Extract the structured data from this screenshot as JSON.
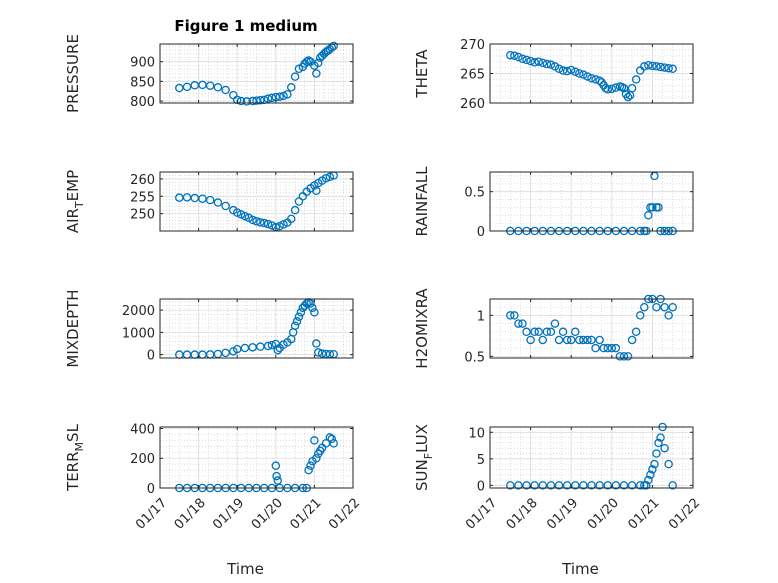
{
  "figure_title": "Figure 1 medium",
  "colors": {
    "marker": "#0072BD",
    "axis": "#262626",
    "grid": "#c9c9c9"
  },
  "chart_data": [
    {
      "type": "scatter",
      "id": "pressure",
      "title": "Figure 1 medium",
      "ylabel": "PRESSURE",
      "xlabel": "",
      "ylim": [
        795,
        945
      ],
      "yticks": [
        800,
        850,
        900
      ],
      "xlim": [
        17,
        22
      ],
      "xticks": [],
      "xtick_labels": [],
      "x": [
        17.5,
        17.7,
        17.9,
        18.1,
        18.3,
        18.5,
        18.7,
        18.9,
        19.0,
        19.1,
        19.25,
        19.4,
        19.5,
        19.6,
        19.7,
        19.8,
        19.9,
        20.0,
        20.1,
        20.2,
        20.3,
        20.4,
        20.5,
        20.6,
        20.7,
        20.75,
        20.8,
        20.85,
        20.9,
        21.0,
        21.05,
        21.1,
        21.15,
        21.2,
        21.25,
        21.3,
        21.35,
        21.4,
        21.45,
        21.5
      ],
      "y": [
        833,
        836,
        840,
        841,
        839,
        835,
        828,
        815,
        803,
        800,
        799,
        800,
        801,
        802,
        803,
        806,
        808,
        810,
        811,
        813,
        817,
        835,
        862,
        882,
        887,
        895,
        900,
        903,
        900,
        890,
        870,
        897,
        910,
        915,
        920,
        925,
        928,
        932,
        936,
        940
      ]
    },
    {
      "type": "scatter",
      "id": "theta",
      "ylabel": "THETA",
      "xlabel": "",
      "ylim": [
        260,
        270
      ],
      "yticks": [
        260,
        265,
        270
      ],
      "xlim": [
        17,
        22
      ],
      "xticks": [],
      "xtick_labels": [],
      "x": [
        17.5,
        17.6,
        17.7,
        17.8,
        17.9,
        18.0,
        18.1,
        18.2,
        18.3,
        18.4,
        18.5,
        18.6,
        18.7,
        18.8,
        18.9,
        19.0,
        19.1,
        19.2,
        19.3,
        19.4,
        19.5,
        19.6,
        19.7,
        19.75,
        19.8,
        19.85,
        19.9,
        20.0,
        20.1,
        20.2,
        20.25,
        20.3,
        20.35,
        20.4,
        20.45,
        20.5,
        20.6,
        20.7,
        20.8,
        20.9,
        21.0,
        21.1,
        21.2,
        21.3,
        21.4,
        21.5
      ],
      "y": [
        268.1,
        268.0,
        267.8,
        267.5,
        267.3,
        267.1,
        266.9,
        267.0,
        266.8,
        266.6,
        266.5,
        266.2,
        265.8,
        265.5,
        265.4,
        265.6,
        265.3,
        265.0,
        264.8,
        264.5,
        264.2,
        264.0,
        263.8,
        263.5,
        263.0,
        262.5,
        262.3,
        262.4,
        262.6,
        262.8,
        262.7,
        262.5,
        261.5,
        261.0,
        261.3,
        262.5,
        264.0,
        265.5,
        266.2,
        266.4,
        266.3,
        266.2,
        266.1,
        266.0,
        265.9,
        265.8
      ]
    },
    {
      "type": "scatter",
      "id": "air_temp",
      "ylabel": "AIR",
      "ylabel_sub": "T",
      "ylabel_rest": "EMP",
      "xlabel": "",
      "ylim": [
        245,
        262
      ],
      "yticks": [
        250,
        255,
        260
      ],
      "xlim": [
        17,
        22
      ],
      "xticks": [],
      "xtick_labels": [],
      "x": [
        17.5,
        17.7,
        17.9,
        18.1,
        18.3,
        18.5,
        18.7,
        18.9,
        19.0,
        19.1,
        19.2,
        19.3,
        19.4,
        19.5,
        19.6,
        19.7,
        19.8,
        19.9,
        20.0,
        20.1,
        20.2,
        20.3,
        20.4,
        20.5,
        20.6,
        20.7,
        20.8,
        20.9,
        21.0,
        21.05,
        21.1,
        21.2,
        21.3,
        21.4,
        21.5
      ],
      "y": [
        254.6,
        254.7,
        254.5,
        254.3,
        253.9,
        253.2,
        252.2,
        251.0,
        250.3,
        249.8,
        249.3,
        248.8,
        248.2,
        247.8,
        247.5,
        247.3,
        247.0,
        246.6,
        246.1,
        246.4,
        246.9,
        247.4,
        248.5,
        251.0,
        253.5,
        255.0,
        256.3,
        257.3,
        258.1,
        256.6,
        258.8,
        259.5,
        260.2,
        260.6,
        261.0
      ]
    },
    {
      "type": "scatter",
      "id": "rainfall",
      "ylabel": "RAINFALL",
      "xlabel": "",
      "ylim": [
        0,
        0.75
      ],
      "yticks": [
        0,
        0.5
      ],
      "xlim": [
        17,
        22
      ],
      "xticks": [],
      "xtick_labels": [],
      "x": [
        17.5,
        17.7,
        17.9,
        18.1,
        18.3,
        18.5,
        18.7,
        18.9,
        19.1,
        19.3,
        19.5,
        19.7,
        19.9,
        20.1,
        20.3,
        20.5,
        20.7,
        20.8,
        20.85,
        20.9,
        20.95,
        21.0,
        21.05,
        21.1,
        21.15,
        21.2,
        21.3,
        21.4,
        21.5
      ],
      "y": [
        0,
        0,
        0,
        0,
        0,
        0,
        0,
        0,
        0,
        0,
        0,
        0,
        0,
        0,
        0,
        0,
        0,
        0,
        0,
        0.2,
        0.3,
        0.3,
        0.7,
        0.3,
        0.3,
        0,
        0,
        0,
        0
      ]
    },
    {
      "type": "scatter",
      "id": "mixdepth",
      "ylabel": "MIXDEPTH",
      "xlabel": "",
      "ylim": [
        -150,
        2500
      ],
      "yticks": [
        0,
        1000,
        2000
      ],
      "xlim": [
        17,
        22
      ],
      "xticks": [],
      "xtick_labels": [],
      "x": [
        17.5,
        17.7,
        17.9,
        18.1,
        18.3,
        18.5,
        18.7,
        18.9,
        19.0,
        19.2,
        19.4,
        19.6,
        19.8,
        19.9,
        20.0,
        20.05,
        20.1,
        20.2,
        20.3,
        20.4,
        20.45,
        20.5,
        20.55,
        20.6,
        20.65,
        20.7,
        20.75,
        20.8,
        20.85,
        20.9,
        20.95,
        21.0,
        21.05,
        21.1,
        21.2,
        21.3,
        21.4,
        21.5
      ],
      "y": [
        0,
        0,
        0,
        0,
        10,
        30,
        80,
        150,
        250,
        300,
        330,
        360,
        390,
        430,
        480,
        200,
        300,
        450,
        550,
        700,
        1000,
        1300,
        1500,
        1700,
        1900,
        2100,
        2200,
        2300,
        2350,
        2300,
        2100,
        1900,
        500,
        100,
        50,
        30,
        20,
        20
      ]
    },
    {
      "type": "scatter",
      "id": "h2omixra",
      "ylabel": "H2OMIXRA",
      "xlabel": "",
      "ylim": [
        0.48,
        1.2
      ],
      "yticks": [
        0.5,
        1
      ],
      "xlim": [
        17,
        22
      ],
      "xticks": [],
      "xtick_labels": [],
      "x": [
        17.5,
        17.6,
        17.7,
        17.8,
        17.9,
        18.0,
        18.1,
        18.2,
        18.3,
        18.4,
        18.5,
        18.6,
        18.7,
        18.8,
        18.9,
        19.0,
        19.1,
        19.2,
        19.3,
        19.4,
        19.5,
        19.6,
        19.7,
        19.8,
        19.9,
        20.0,
        20.1,
        20.2,
        20.3,
        20.4,
        20.5,
        20.6,
        20.7,
        20.8,
        20.9,
        21.0,
        21.1,
        21.2,
        21.3,
        21.4,
        21.5
      ],
      "y": [
        1.0,
        1.0,
        0.9,
        0.9,
        0.8,
        0.7,
        0.8,
        0.8,
        0.7,
        0.8,
        0.8,
        0.9,
        0.7,
        0.8,
        0.7,
        0.7,
        0.8,
        0.7,
        0.7,
        0.7,
        0.7,
        0.6,
        0.7,
        0.6,
        0.6,
        0.6,
        0.6,
        0.5,
        0.5,
        0.5,
        0.7,
        0.8,
        1.0,
        1.1,
        1.2,
        1.2,
        1.1,
        1.2,
        1.1,
        1.0,
        1.1
      ]
    },
    {
      "type": "scatter",
      "id": "terr_msl",
      "ylabel": "TERR",
      "ylabel_sub": "M",
      "ylabel_rest": "SL",
      "xlabel": "Time",
      "ylim": [
        0,
        410
      ],
      "yticks": [
        0,
        200,
        400
      ],
      "xlim": [
        17,
        22
      ],
      "xticks": [
        17,
        18,
        19,
        20,
        21,
        22
      ],
      "xtick_labels": [
        "01/17",
        "01/18",
        "01/19",
        "01/20",
        "01/21",
        "01/22"
      ],
      "x": [
        17.5,
        17.7,
        17.9,
        18.1,
        18.3,
        18.5,
        18.7,
        18.9,
        19.1,
        19.3,
        19.5,
        19.7,
        19.9,
        20.0,
        20.02,
        20.05,
        20.1,
        20.3,
        20.5,
        20.7,
        20.8,
        20.85,
        20.9,
        20.95,
        21.0,
        21.05,
        21.1,
        21.15,
        21.2,
        21.3,
        21.4,
        21.45,
        21.5
      ],
      "y": [
        0,
        0,
        0,
        0,
        0,
        0,
        0,
        0,
        0,
        0,
        0,
        0,
        0,
        150,
        80,
        50,
        0,
        0,
        0,
        0,
        0,
        120,
        150,
        180,
        320,
        200,
        230,
        250,
        270,
        300,
        340,
        330,
        300
      ]
    },
    {
      "type": "scatter",
      "id": "sun_flux",
      "ylabel": "SUN",
      "ylabel_sub": "F",
      "ylabel_rest": "LUX",
      "xlabel": "Time",
      "ylim": [
        -0.5,
        11
      ],
      "yticks": [
        0,
        5,
        10
      ],
      "xlim": [
        17,
        22
      ],
      "xticks": [
        17,
        18,
        19,
        20,
        21,
        22
      ],
      "xtick_labels": [
        "01/17",
        "01/18",
        "01/19",
        "01/20",
        "01/21",
        "01/22"
      ],
      "x": [
        17.5,
        17.7,
        17.9,
        18.1,
        18.3,
        18.5,
        18.7,
        18.9,
        19.1,
        19.3,
        19.5,
        19.7,
        19.9,
        20.1,
        20.3,
        20.5,
        20.7,
        20.8,
        20.85,
        20.9,
        20.95,
        21.0,
        21.05,
        21.1,
        21.15,
        21.2,
        21.25,
        21.3,
        21.4,
        21.5
      ],
      "y": [
        0,
        0,
        0,
        0,
        0,
        0,
        0,
        0,
        0,
        0,
        0,
        0,
        0,
        0,
        0,
        0,
        0,
        0,
        0,
        1,
        2,
        3,
        4,
        6,
        8,
        9,
        11,
        7,
        4,
        0
      ]
    }
  ]
}
